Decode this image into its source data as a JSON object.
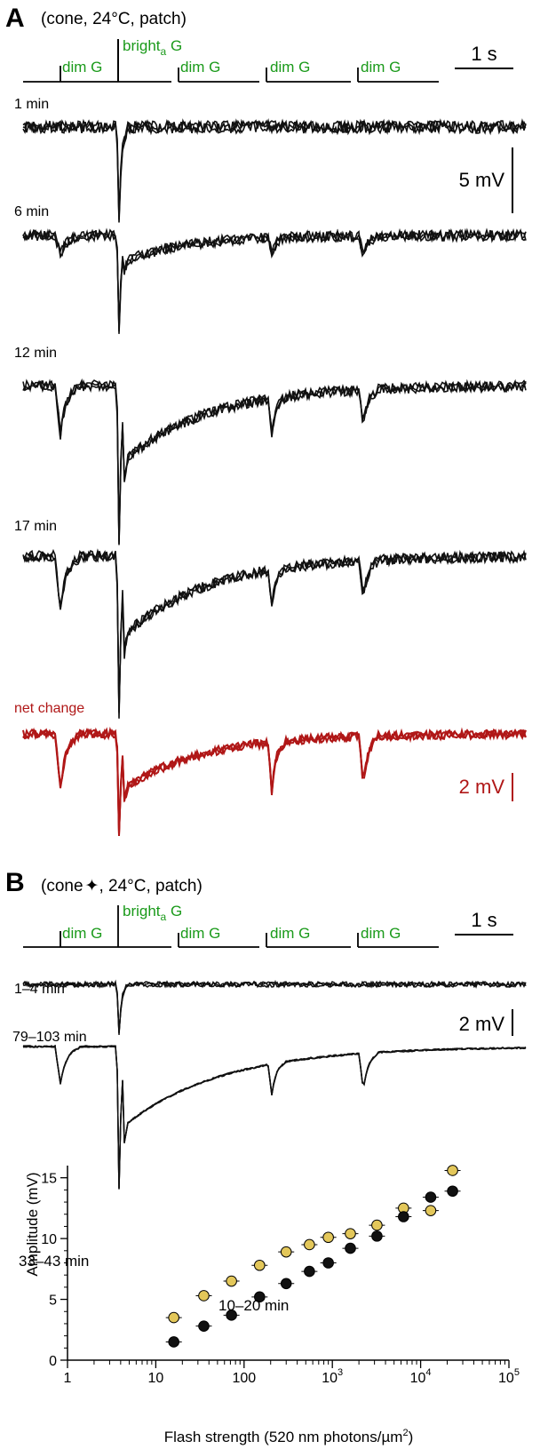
{
  "panel_a": {
    "letter": "A",
    "header": "(cone, 24°C, patch)",
    "stimulus": {
      "bright_main": "bright",
      "bright_sub": "a",
      "bright_suffix": " G",
      "dim_labels": [
        "dim G",
        "dim G",
        "dim G",
        "dim G"
      ]
    },
    "time_scale": "1 s",
    "volt_scale": "5 mV",
    "red_volt_scale": "2 mV",
    "trace_labels": [
      "1 min",
      "6 min",
      "12 min",
      "17 min",
      "net change"
    ]
  },
  "panel_b": {
    "letter": "B",
    "header_pre": "(cone",
    "header_post": ", 24°C, patch)",
    "stimulus": {
      "bright_main": "bright",
      "bright_sub": "a",
      "bright_suffix": " G",
      "dim_labels": [
        "dim G",
        "dim G",
        "dim G",
        "dim G"
      ]
    },
    "time_scale": "1 s",
    "volt_scale": "2 mV",
    "trace_labels": [
      "1–4 min",
      "79–103 min"
    ]
  },
  "colors": {
    "trace": "#111111",
    "red": "#b01717",
    "stim": "#1a9a1a",
    "yellow": "#e3c75a"
  },
  "chart_data": {
    "type": "scatter",
    "xlabel_pre": "Flash strength (520 nm photons/µm",
    "xlabel_sup": "2",
    "xlabel_post": ")",
    "ylabel": "Amplitude (mV)",
    "x_scale": "log",
    "xlim": [
      1,
      100000
    ],
    "ylim": [
      0,
      16
    ],
    "x_ticks": [
      {
        "value": 1,
        "base": "1",
        "exp": ""
      },
      {
        "value": 10,
        "base": "10",
        "exp": ""
      },
      {
        "value": 100,
        "base": "100",
        "exp": ""
      },
      {
        "value": 1000,
        "base": "10",
        "exp": "3"
      },
      {
        "value": 10000,
        "base": "10",
        "exp": "4"
      },
      {
        "value": 100000,
        "base": "10",
        "exp": "5"
      }
    ],
    "y_ticks": [
      0,
      5,
      10,
      15
    ],
    "series": [
      {
        "name": "33–43 min",
        "color": "#e3c75a",
        "x": [
          16,
          35,
          72,
          150,
          300,
          550,
          900,
          1600,
          3200,
          6400,
          13000,
          23000
        ],
        "y": [
          3.5,
          5.3,
          6.5,
          7.8,
          8.9,
          9.5,
          10.1,
          10.4,
          11.1,
          12.5,
          12.3,
          15.6
        ]
      },
      {
        "name": "10–20 min",
        "color": "#111111",
        "x": [
          16,
          35,
          72,
          150,
          300,
          550,
          900,
          1600,
          3200,
          6400,
          13000,
          23000
        ],
        "y": [
          1.5,
          2.8,
          3.7,
          5.2,
          6.3,
          7.3,
          8.0,
          9.2,
          10.2,
          11.8,
          13.4,
          13.9
        ]
      }
    ]
  }
}
